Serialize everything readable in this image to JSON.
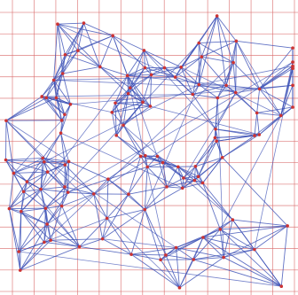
{
  "figure": {
    "background": "#ffffff",
    "grid_color": "#d96b6b",
    "edge_color": "#3a4fb5",
    "node_color": "#cc3333",
    "grid_columns": 13,
    "grid_rows": 13,
    "node_count": 110
  }
}
